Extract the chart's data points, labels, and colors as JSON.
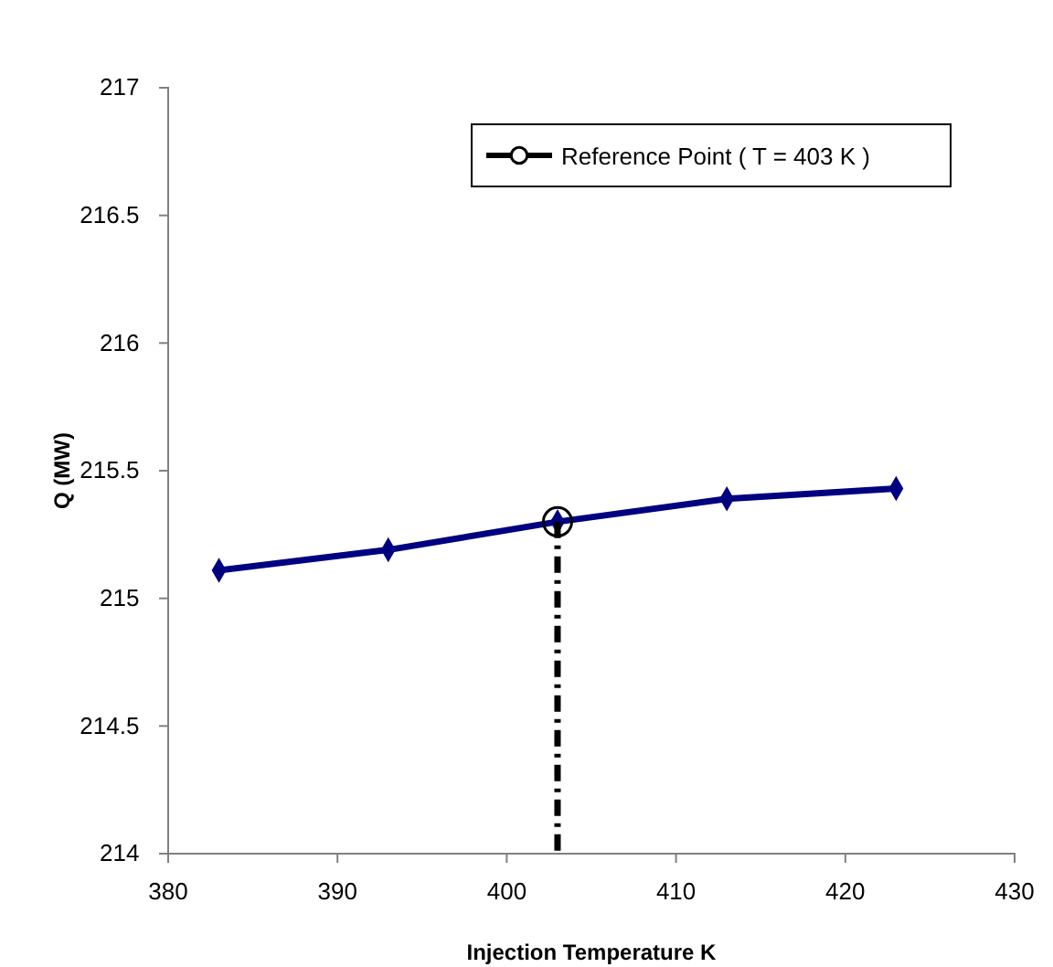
{
  "chart_data": {
    "type": "line",
    "xlabel": "Injection Temperature K",
    "ylabel": "Q (MW)",
    "xlim": [
      380,
      430
    ],
    "xticks": [
      380,
      390,
      400,
      410,
      420,
      430
    ],
    "ylim": [
      214,
      217
    ],
    "yticks": [
      214,
      214.5,
      215,
      215.5,
      216,
      216.5,
      217
    ],
    "grid": false,
    "legend": "top right",
    "series": [
      {
        "color": "#000080",
        "marker": "diamond",
        "line_style": "solid",
        "x": [
          383,
          393,
          403,
          413,
          423
        ],
        "values": [
          215.11,
          215.19,
          215.3,
          215.39,
          215.43
        ]
      },
      {
        "type": "line",
        "color": "#000000",
        "marker": "none",
        "line_style": "dashed",
        "x": [
          403,
          403
        ],
        "values": [
          215.3,
          214
        ]
      },
      {
        "type": "scatter",
        "name": "Reference Point ( T = 403 K )",
        "color": "#000000",
        "marker": "circle",
        "x": [
          403
        ],
        "values": [
          215.3
        ]
      }
    ]
  }
}
